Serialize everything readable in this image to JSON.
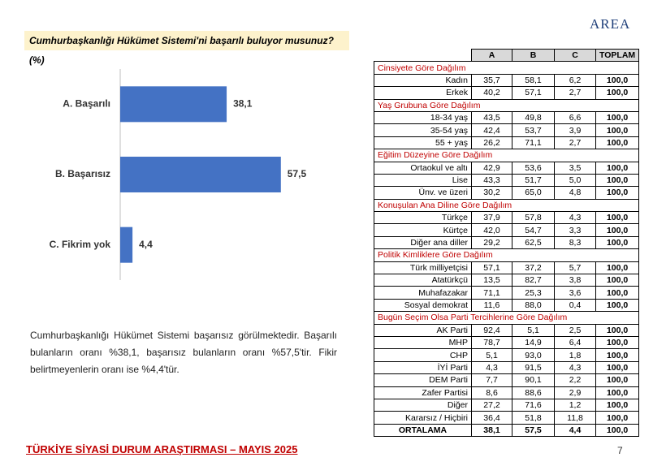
{
  "header": {
    "question": "Cumhurbaşkanlığı Hükümet Sistemi'ni başarılı buluyor musunuz? (%)",
    "logo": "AREA"
  },
  "chart_data": {
    "type": "hbar",
    "categories": [
      "A. Başarılı",
      "B. Başarısız",
      "C. Fikrim yok"
    ],
    "values": [
      38.1,
      57.5,
      4.4
    ],
    "value_labels": [
      "38,1",
      "57,5",
      "4,4"
    ],
    "color": "#4472c4"
  },
  "paragraph": "Cumhurbaşkanlığı Hükümet Sistemi başarısız görülmektedir. Başarılı bulanların oranı %38,1, başarısız bulanların oranı %57,5'tir. Fikir belirtmeyenlerin oranı ise %4,4'tür.",
  "table": {
    "columns": [
      "A",
      "B",
      "C",
      "TOPLAM"
    ],
    "sections": [
      {
        "title": "Cinsiyete Göre Dağılım",
        "rows": [
          {
            "label": "Kadın",
            "values": [
              "35,7",
              "58,1",
              "6,2",
              "100,0"
            ]
          },
          {
            "label": "Erkek",
            "values": [
              "40,2",
              "57,1",
              "2,7",
              "100,0"
            ]
          }
        ]
      },
      {
        "title": "Yaş Grubuna Göre Dağılım",
        "rows": [
          {
            "label": "18-34 yaş",
            "values": [
              "43,5",
              "49,8",
              "6,6",
              "100,0"
            ]
          },
          {
            "label": "35-54 yaş",
            "values": [
              "42,4",
              "53,7",
              "3,9",
              "100,0"
            ]
          },
          {
            "label": "55 + yaş",
            "values": [
              "26,2",
              "71,1",
              "2,7",
              "100,0"
            ]
          }
        ]
      },
      {
        "title": "Eğitim Düzeyine Göre Dağılım",
        "rows": [
          {
            "label": "Ortaokul ve altı",
            "values": [
              "42,9",
              "53,6",
              "3,5",
              "100,0"
            ]
          },
          {
            "label": "Lise",
            "values": [
              "43,3",
              "51,7",
              "5,0",
              "100,0"
            ]
          },
          {
            "label": "Ünv. ve üzeri",
            "values": [
              "30,2",
              "65,0",
              "4,8",
              "100,0"
            ]
          }
        ]
      },
      {
        "title": "Konuşulan Ana Diline Göre Dağılım",
        "rows": [
          {
            "label": "Türkçe",
            "values": [
              "37,9",
              "57,8",
              "4,3",
              "100,0"
            ]
          },
          {
            "label": "Kürtçe",
            "values": [
              "42,0",
              "54,7",
              "3,3",
              "100,0"
            ]
          },
          {
            "label": "Diğer ana diller",
            "values": [
              "29,2",
              "62,5",
              "8,3",
              "100,0"
            ]
          }
        ]
      },
      {
        "title": "Politik Kimliklere Göre Dağılım",
        "rows": [
          {
            "label": "Türk milliyetçisi",
            "values": [
              "57,1",
              "37,2",
              "5,7",
              "100,0"
            ]
          },
          {
            "label": "Atatürkçü",
            "values": [
              "13,5",
              "82,7",
              "3,8",
              "100,0"
            ]
          },
          {
            "label": "Muhafazakar",
            "values": [
              "71,1",
              "25,3",
              "3,6",
              "100,0"
            ]
          },
          {
            "label": "Sosyal demokrat",
            "values": [
              "11,6",
              "88,0",
              "0,4",
              "100,0"
            ]
          }
        ]
      },
      {
        "title": "Bugün Seçim Olsa Parti Tercihlerine Göre Dağılım",
        "rows": [
          {
            "label": "AK Parti",
            "values": [
              "92,4",
              "5,1",
              "2,5",
              "100,0"
            ]
          },
          {
            "label": "MHP",
            "values": [
              "78,7",
              "14,9",
              "6,4",
              "100,0"
            ]
          },
          {
            "label": "CHP",
            "values": [
              "5,1",
              "93,0",
              "1,8",
              "100,0"
            ]
          },
          {
            "label": "İYİ Parti",
            "values": [
              "4,3",
              "91,5",
              "4,3",
              "100,0"
            ]
          },
          {
            "label": "DEM Parti",
            "values": [
              "7,7",
              "90,1",
              "2,2",
              "100,0"
            ]
          },
          {
            "label": "Zafer Partisi",
            "values": [
              "8,6",
              "88,6",
              "2,9",
              "100,0"
            ]
          },
          {
            "label": "Diğer",
            "values": [
              "27,2",
              "71,6",
              "1,2",
              "100,0"
            ]
          },
          {
            "label": "Kararsız / Hiçbiri",
            "values": [
              "36,4",
              "51,8",
              "11,8",
              "100,0"
            ]
          }
        ]
      }
    ],
    "average": {
      "label": "ORTALAMA",
      "values": [
        "38,1",
        "57,5",
        "4,4",
        "100,0"
      ]
    }
  },
  "footer": {
    "title": "TÜRKİYE SİYASİ DURUM ARAŞTIRMASI – MAYIS 2025",
    "page": "7"
  }
}
